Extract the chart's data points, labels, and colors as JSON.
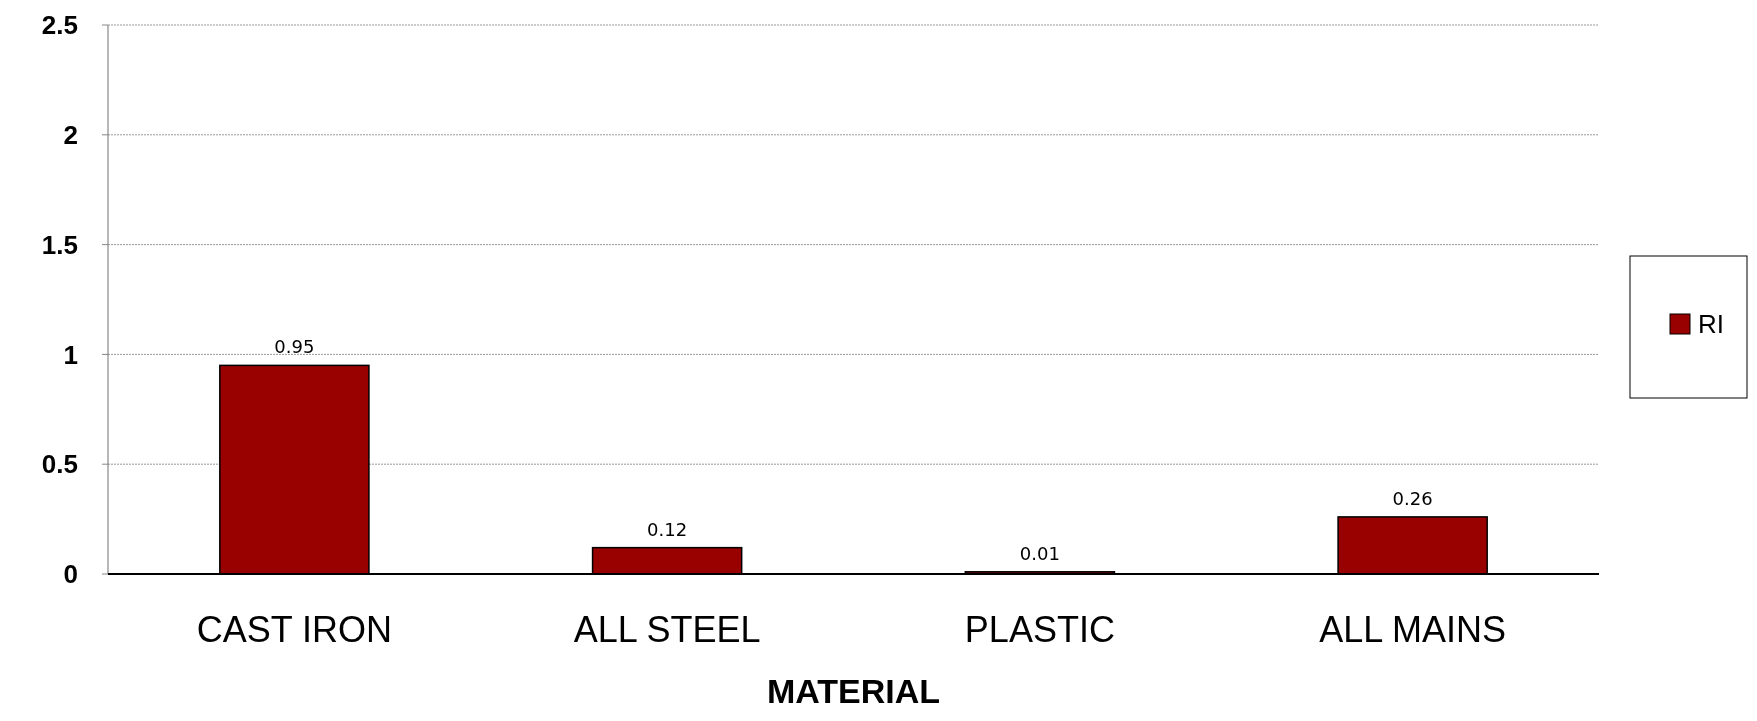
{
  "chart_data": {
    "type": "bar",
    "xlabel": "MATERIAL",
    "categories": [
      "CAST IRON",
      "ALL STEEL",
      "PLASTIC",
      "ALL MAINS"
    ],
    "series": [
      {
        "name": "RI",
        "color": "#990000",
        "values": [
          0.95,
          0.12,
          0.01,
          0.26
        ]
      }
    ],
    "ylim": [
      0,
      2.5
    ],
    "yticks": [
      0,
      0.5,
      1,
      1.5,
      2,
      2.5
    ],
    "grid": "y",
    "legend": "right",
    "data_labels": true
  }
}
